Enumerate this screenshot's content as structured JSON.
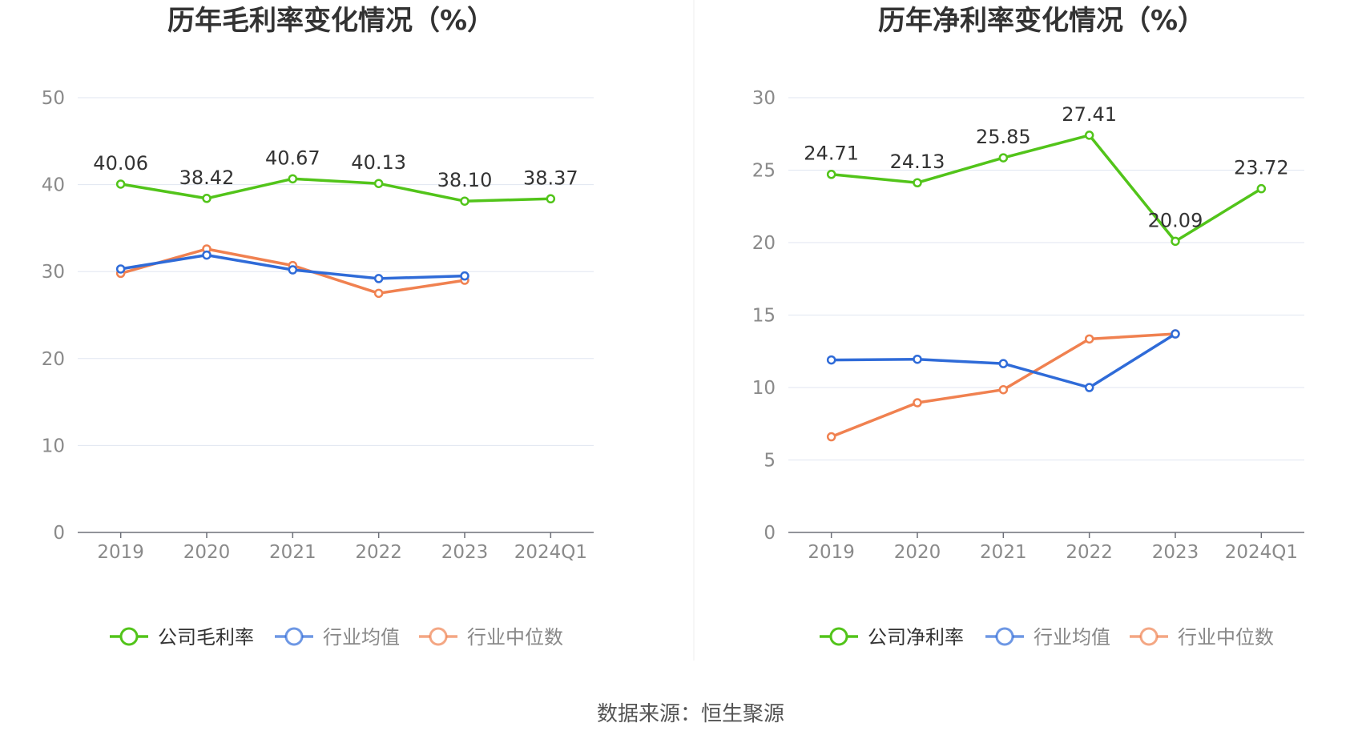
{
  "source": "数据来源：恒生聚源",
  "chart_data": [
    {
      "type": "line",
      "title": "历年毛利率变化情况（%）",
      "categories": [
        "2019",
        "2020",
        "2021",
        "2022",
        "2023",
        "2024Q1"
      ],
      "ylim": [
        0,
        50
      ],
      "yticks": [
        0,
        10,
        20,
        30,
        40,
        50
      ],
      "grid": true,
      "legend_position": "bottom-center",
      "series": [
        {
          "name": "公司毛利率",
          "color": "#52c41a",
          "values": [
            40.06,
            38.42,
            40.67,
            40.13,
            38.1,
            38.37
          ],
          "labels": [
            "40.06",
            "38.42",
            "40.67",
            "40.13",
            "38.10",
            "38.37"
          ]
        },
        {
          "name": "行业均值",
          "color": "#2f6bd8",
          "values": [
            30.3,
            31.9,
            30.2,
            29.2,
            29.5,
            null
          ]
        },
        {
          "name": "行业中位数",
          "color": "#f08150",
          "values": [
            29.8,
            32.6,
            30.7,
            27.5,
            29.0,
            null
          ]
        }
      ]
    },
    {
      "type": "line",
      "title": "历年净利率变化情况（%）",
      "categories": [
        "2019",
        "2020",
        "2021",
        "2022",
        "2023",
        "2024Q1"
      ],
      "ylim": [
        0,
        30
      ],
      "yticks": [
        0,
        5,
        10,
        15,
        20,
        25,
        30
      ],
      "grid": true,
      "legend_position": "bottom-center",
      "series": [
        {
          "name": "公司净利率",
          "color": "#52c41a",
          "values": [
            24.71,
            24.13,
            25.85,
            27.41,
            20.09,
            23.72
          ],
          "labels": [
            "24.71",
            "24.13",
            "25.85",
            "27.41",
            "20.09",
            "23.72"
          ]
        },
        {
          "name": "行业均值",
          "color": "#2f6bd8",
          "values": [
            11.9,
            11.95,
            11.65,
            10.0,
            13.7,
            null
          ]
        },
        {
          "name": "行业中位数",
          "color": "#f08150",
          "values": [
            6.6,
            8.95,
            9.85,
            13.35,
            13.7,
            null
          ]
        }
      ]
    }
  ]
}
